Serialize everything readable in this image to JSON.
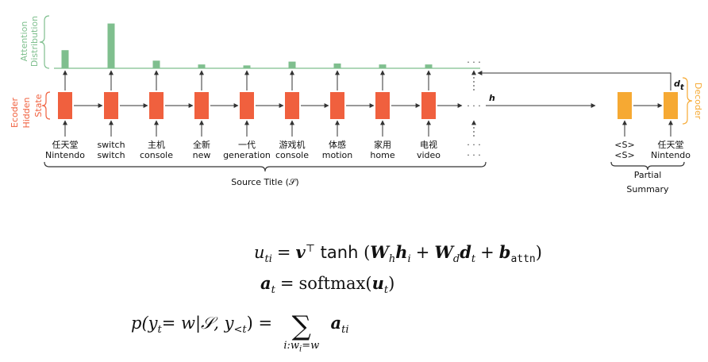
{
  "attention": {
    "label_lines": [
      "Attention",
      "Distribution"
    ],
    "weights": [
      0.19,
      0.47,
      0.08,
      0.04,
      0.03,
      0.07,
      0.05,
      0.04,
      0.04
    ]
  },
  "encoder": {
    "label_lines": [
      "Ecoder",
      "Hidden",
      "State"
    ]
  },
  "source_tokens": [
    {
      "zh": "任天堂",
      "en": "Nintendo"
    },
    {
      "zh": "switch",
      "en": "switch"
    },
    {
      "zh": "主机",
      "en": "console"
    },
    {
      "zh": "全新",
      "en": "new"
    },
    {
      "zh": "一代",
      "en": "generation"
    },
    {
      "zh": "游戏机",
      "en": "console"
    },
    {
      "zh": "体感",
      "en": "motion"
    },
    {
      "zh": "家用",
      "en": "home"
    },
    {
      "zh": "电视",
      "en": "video"
    }
  ],
  "ellipsis": "· · ·",
  "source_label": "Source Title (𝒮)",
  "h_label": "h",
  "d_label": {
    "base": "d",
    "sub": "t"
  },
  "decoder_label": "Decoder",
  "summary_tokens": [
    {
      "zh": "<S>",
      "en": "<S>"
    },
    {
      "zh": "任天堂",
      "en": "Nintendo"
    }
  ],
  "summary_label_lines": [
    "Partial",
    "Summary"
  ],
  "equations": [
    [
      "u",
      "ti",
      "=",
      "v",
      "⊤",
      "tanh",
      "(",
      "W",
      "h",
      "h",
      "i",
      "+",
      "W",
      "d",
      "d",
      "t",
      "+",
      "b",
      "attn",
      ")"
    ],
    [
      "a",
      "t",
      "=",
      "softmax(",
      "u",
      "t",
      ")"
    ],
    [
      "p(y",
      "t",
      "= w|𝒮, y",
      "<t",
      ") =",
      "∑",
      "i:w",
      "i",
      "=w",
      "a",
      "ti"
    ]
  ]
}
